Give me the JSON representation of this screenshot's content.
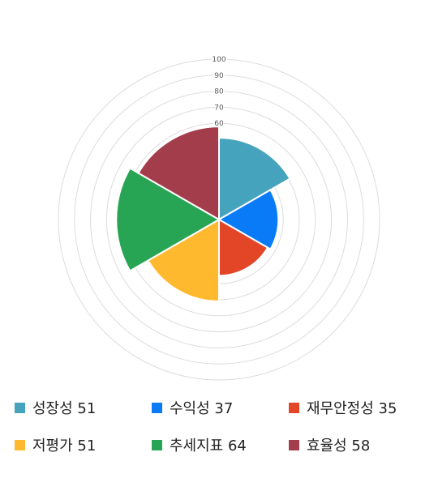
{
  "chart_data": {
    "type": "polar-area",
    "title": "",
    "r_ticks": [
      60,
      70,
      80,
      90,
      100
    ],
    "r_max": 100,
    "categories": [
      "성장성",
      "수익성",
      "재무안정성",
      "저평가",
      "추세지표",
      "효율성"
    ],
    "values": [
      51,
      37,
      35,
      51,
      64,
      58
    ],
    "colors": [
      "#46a3be",
      "#0a7bf6",
      "#e34527",
      "#ffb92f",
      "#27a554",
      "#a33d4c"
    ],
    "grid": true,
    "legend_position": "bottom"
  },
  "legend": [
    {
      "label": "성장성 51"
    },
    {
      "label": "수익성 37"
    },
    {
      "label": "재무안정성 35"
    },
    {
      "label": "저평가 51"
    },
    {
      "label": "추세지표 64"
    },
    {
      "label": "효율성 58"
    }
  ]
}
